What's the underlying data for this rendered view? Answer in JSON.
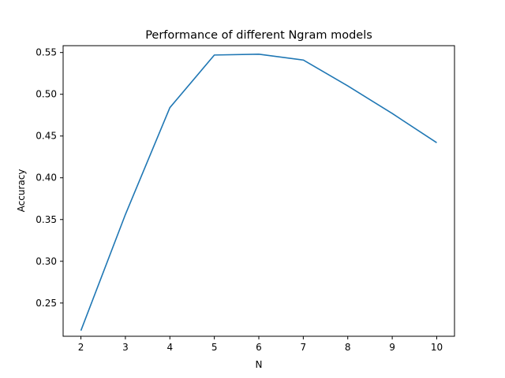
{
  "chart_data": {
    "type": "line",
    "title": "Performance of different Ngram models",
    "xlabel": "N",
    "ylabel": "Accuracy",
    "xlim": [
      1.6,
      10.4
    ],
    "ylim": [
      0.2102,
      0.5582
    ],
    "x_ticks": [
      2,
      3,
      4,
      5,
      6,
      7,
      8,
      9,
      10
    ],
    "y_ticks": [
      0.25,
      0.3,
      0.35,
      0.4,
      0.45,
      0.5,
      0.55
    ],
    "y_tick_labels": [
      "0.25",
      "0.30",
      "0.35",
      "0.40",
      "0.45",
      "0.50",
      "0.55"
    ],
    "grid": false,
    "legend": false,
    "series": [
      {
        "color": "#1f77b4",
        "x": [
          2,
          3,
          4,
          5,
          6,
          7,
          8,
          9,
          10
        ],
        "values": [
          0.217,
          0.356,
          0.484,
          0.547,
          0.548,
          0.541,
          0.51,
          0.477,
          0.442
        ]
      }
    ]
  }
}
